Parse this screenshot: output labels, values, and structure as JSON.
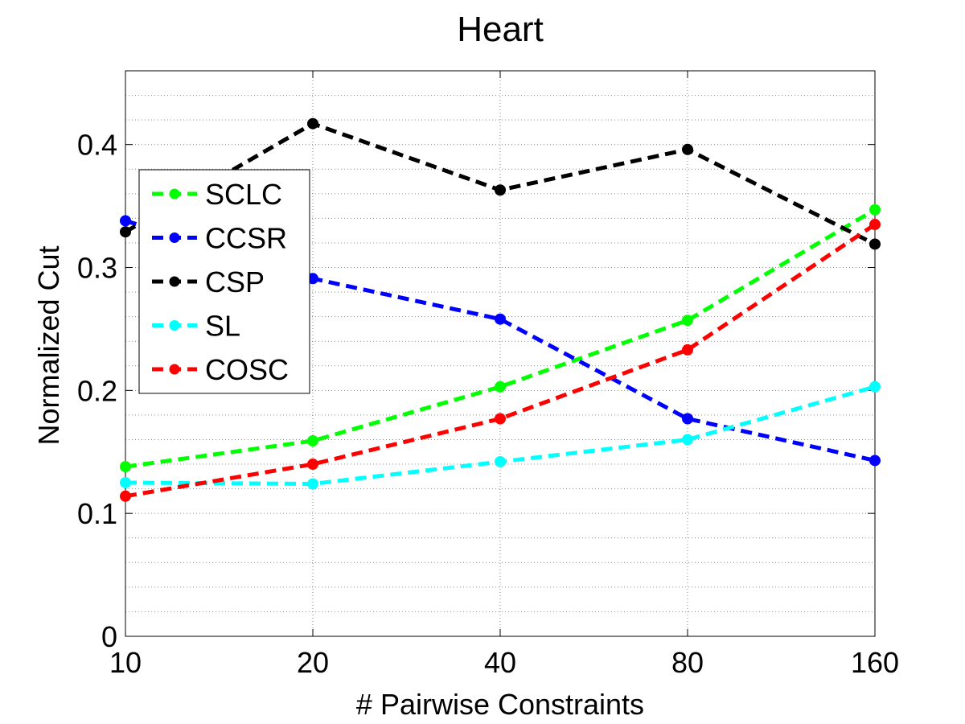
{
  "chart_data": {
    "type": "line",
    "title": "Heart",
    "xlabel": "# Pairwise Constraints",
    "ylabel": "Normalized Cut",
    "categories": [
      "10",
      "20",
      "40",
      "80",
      "160"
    ],
    "ylim": [
      0,
      0.46
    ],
    "yticks": [
      0,
      0.1,
      0.2,
      0.3,
      0.4
    ],
    "ytick_labels": [
      "0",
      "0.1",
      "0.2",
      "0.3",
      "0.4"
    ],
    "grid": true,
    "legend_position": "upper-left",
    "series": [
      {
        "name": "SCLC",
        "color": "#00ff00",
        "values": [
          0.138,
          0.159,
          0.203,
          0.257,
          0.347
        ]
      },
      {
        "name": "CCSR",
        "color": "#0000ff",
        "values": [
          0.338,
          0.291,
          0.258,
          0.177,
          0.143
        ]
      },
      {
        "name": "CSP",
        "color": "#000000",
        "values": [
          0.329,
          0.417,
          0.363,
          0.396,
          0.319
        ]
      },
      {
        "name": "SL",
        "color": "#00ffff",
        "values": [
          0.125,
          0.124,
          0.142,
          0.16,
          0.203
        ]
      },
      {
        "name": "COSC",
        "color": "#ff0000",
        "values": [
          0.114,
          0.14,
          0.177,
          0.233,
          0.335
        ]
      }
    ]
  }
}
